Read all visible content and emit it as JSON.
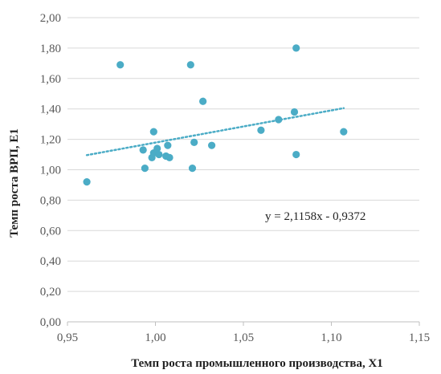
{
  "chart_data": {
    "type": "scatter",
    "title": "",
    "xlabel": "Темп роста промышленного производства, X1",
    "ylabel": "Темп роста ВРП, Е1",
    "xlim": [
      0.95,
      1.15
    ],
    "ylim": [
      0.0,
      2.0
    ],
    "x_ticks": [
      "0,95",
      "1,00",
      "1,05",
      "1,10",
      "1,15"
    ],
    "y_ticks": [
      "0,00",
      "0,20",
      "0,40",
      "0,60",
      "0,80",
      "1,00",
      "1,20",
      "1,40",
      "1,60",
      "1,80",
      "2,00"
    ],
    "x_tick_values": [
      0.95,
      1.0,
      1.05,
      1.1,
      1.15
    ],
    "y_tick_values": [
      0.0,
      0.2,
      0.4,
      0.6,
      0.8,
      1.0,
      1.2,
      1.4,
      1.6,
      1.8,
      2.0
    ],
    "grid": "horizontal",
    "legend": "none",
    "marker_color": "#4bacc6",
    "series": [
      {
        "points": [
          {
            "x": 0.961,
            "y": 0.92
          },
          {
            "x": 0.98,
            "y": 1.69
          },
          {
            "x": 0.993,
            "y": 1.13
          },
          {
            "x": 0.994,
            "y": 1.01
          },
          {
            "x": 0.998,
            "y": 1.08
          },
          {
            "x": 0.999,
            "y": 1.25
          },
          {
            "x": 0.999,
            "y": 1.11
          },
          {
            "x": 1.001,
            "y": 1.14
          },
          {
            "x": 1.002,
            "y": 1.1
          },
          {
            "x": 1.006,
            "y": 1.09
          },
          {
            "x": 1.007,
            "y": 1.16
          },
          {
            "x": 1.008,
            "y": 1.08
          },
          {
            "x": 1.02,
            "y": 1.69
          },
          {
            "x": 1.021,
            "y": 1.01
          },
          {
            "x": 1.022,
            "y": 1.18
          },
          {
            "x": 1.027,
            "y": 1.45
          },
          {
            "x": 1.032,
            "y": 1.16
          },
          {
            "x": 1.06,
            "y": 1.26
          },
          {
            "x": 1.07,
            "y": 1.33
          },
          {
            "x": 1.079,
            "y": 1.38
          },
          {
            "x": 1.08,
            "y": 1.8
          },
          {
            "x": 1.08,
            "y": 1.1
          },
          {
            "x": 1.107,
            "y": 1.25
          }
        ]
      }
    ],
    "trendline": {
      "type": "linear",
      "slope": 2.1158,
      "intercept": -0.9372,
      "x_range": [
        0.961,
        1.107
      ],
      "color": "#4bacc6",
      "label": "y = 2,1158x  - 0,9372"
    }
  }
}
